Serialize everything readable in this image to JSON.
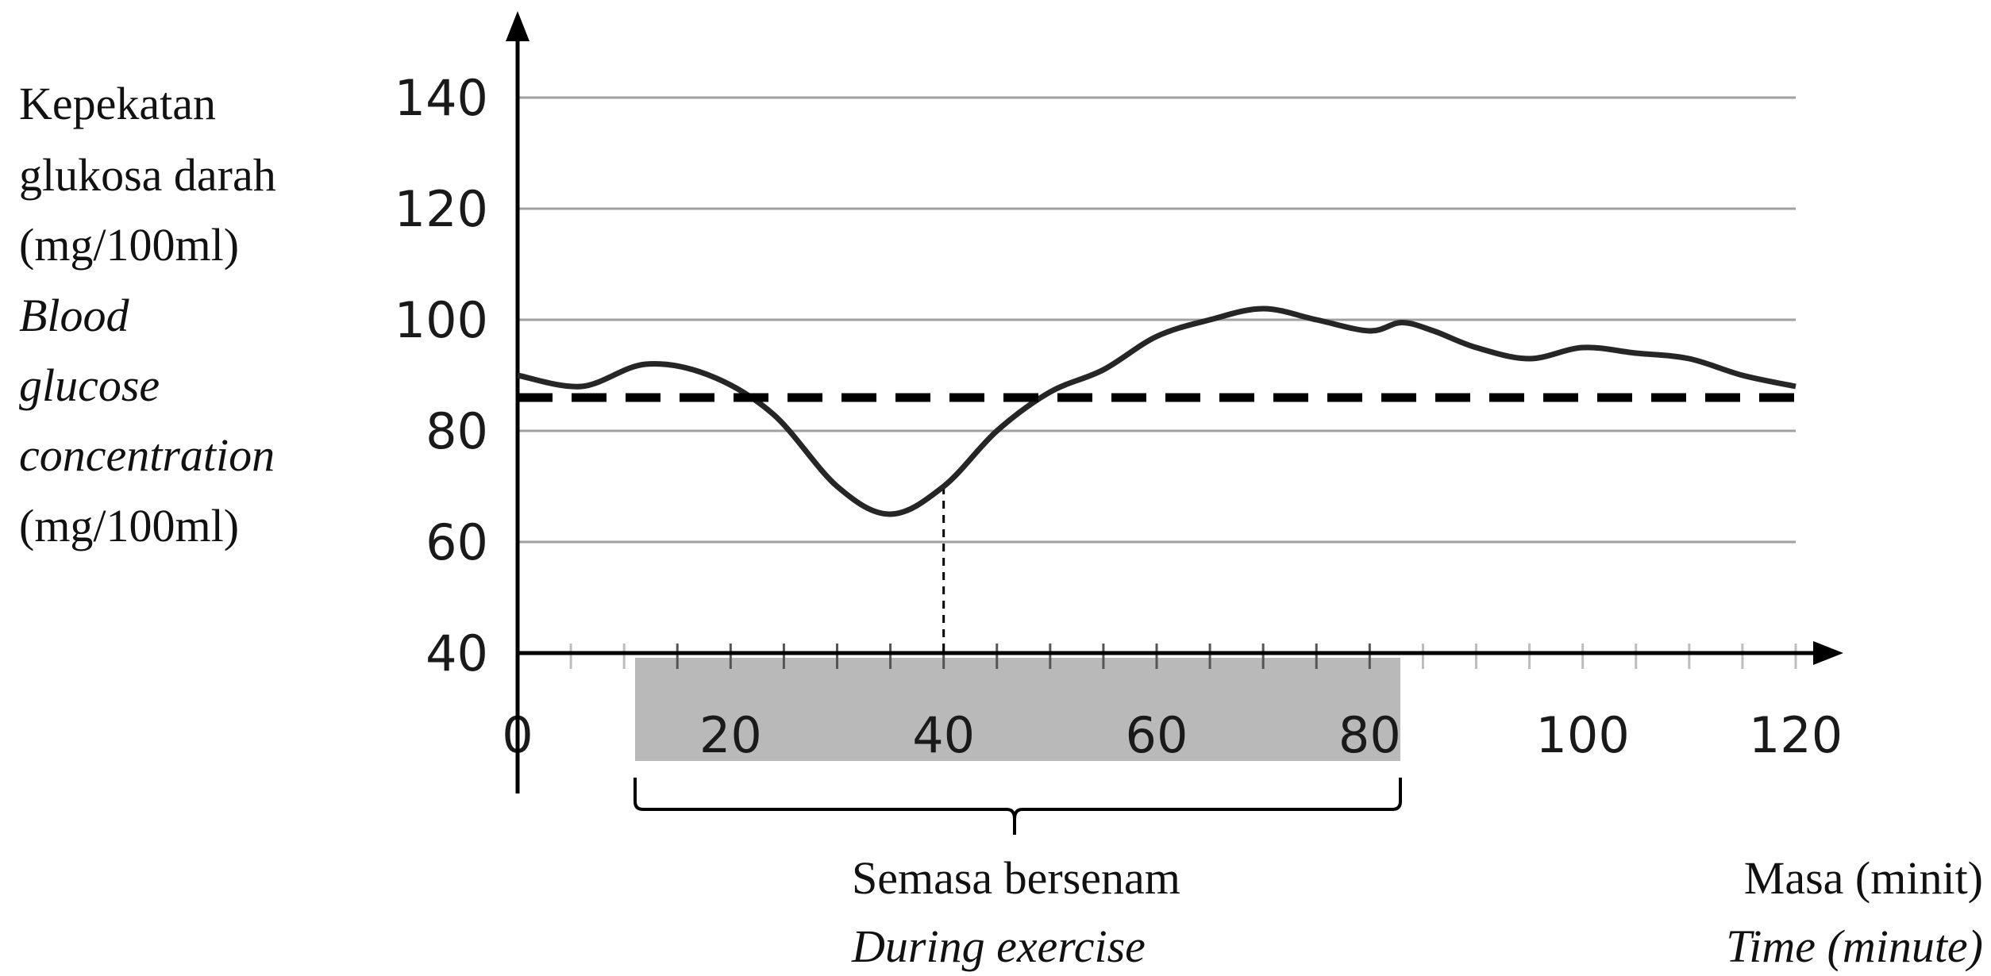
{
  "chart_data": {
    "type": "line",
    "ylabel_lines": [
      "Kepekatan",
      "glukosa darah",
      "(mg/100ml)",
      "Blood",
      "glucose",
      "concentration",
      "(mg/100ml)"
    ],
    "xlabel_lines": [
      "Masa (minit)",
      "Time (minute)"
    ],
    "annotation_lines": [
      "Semasa bersenam",
      "During exercise"
    ],
    "xlim": [
      0,
      120
    ],
    "ylim": [
      40,
      140
    ],
    "x_ticks": [
      0,
      20,
      40,
      60,
      80,
      100,
      120
    ],
    "y_ticks": [
      40,
      60,
      80,
      100,
      120,
      140
    ],
    "x_tick_labels": [
      "0",
      "20",
      "40",
      "60",
      "80",
      "100",
      "120"
    ],
    "y_tick_labels": [
      "40",
      "60",
      "80",
      "100",
      "120",
      "140"
    ],
    "grid": true,
    "series": [
      {
        "style": "solid",
        "x": [
          0,
          6,
          12,
          18,
          24,
          30,
          35,
          40,
          45,
          50,
          55,
          60,
          65,
          70,
          75,
          80,
          83,
          86,
          90,
          95,
          100,
          105,
          110,
          115,
          120
        ],
        "y": [
          90,
          88,
          92,
          90,
          83,
          70,
          65,
          70,
          80,
          87,
          91,
          97,
          100,
          102,
          100,
          98,
          99.5,
          98,
          95,
          93,
          95,
          94,
          93,
          90,
          88
        ]
      },
      {
        "style": "dashed",
        "x": [
          0,
          120
        ],
        "y": [
          86,
          86
        ]
      }
    ],
    "exercise_period": [
      11,
      83
    ],
    "marker_x": 40
  }
}
